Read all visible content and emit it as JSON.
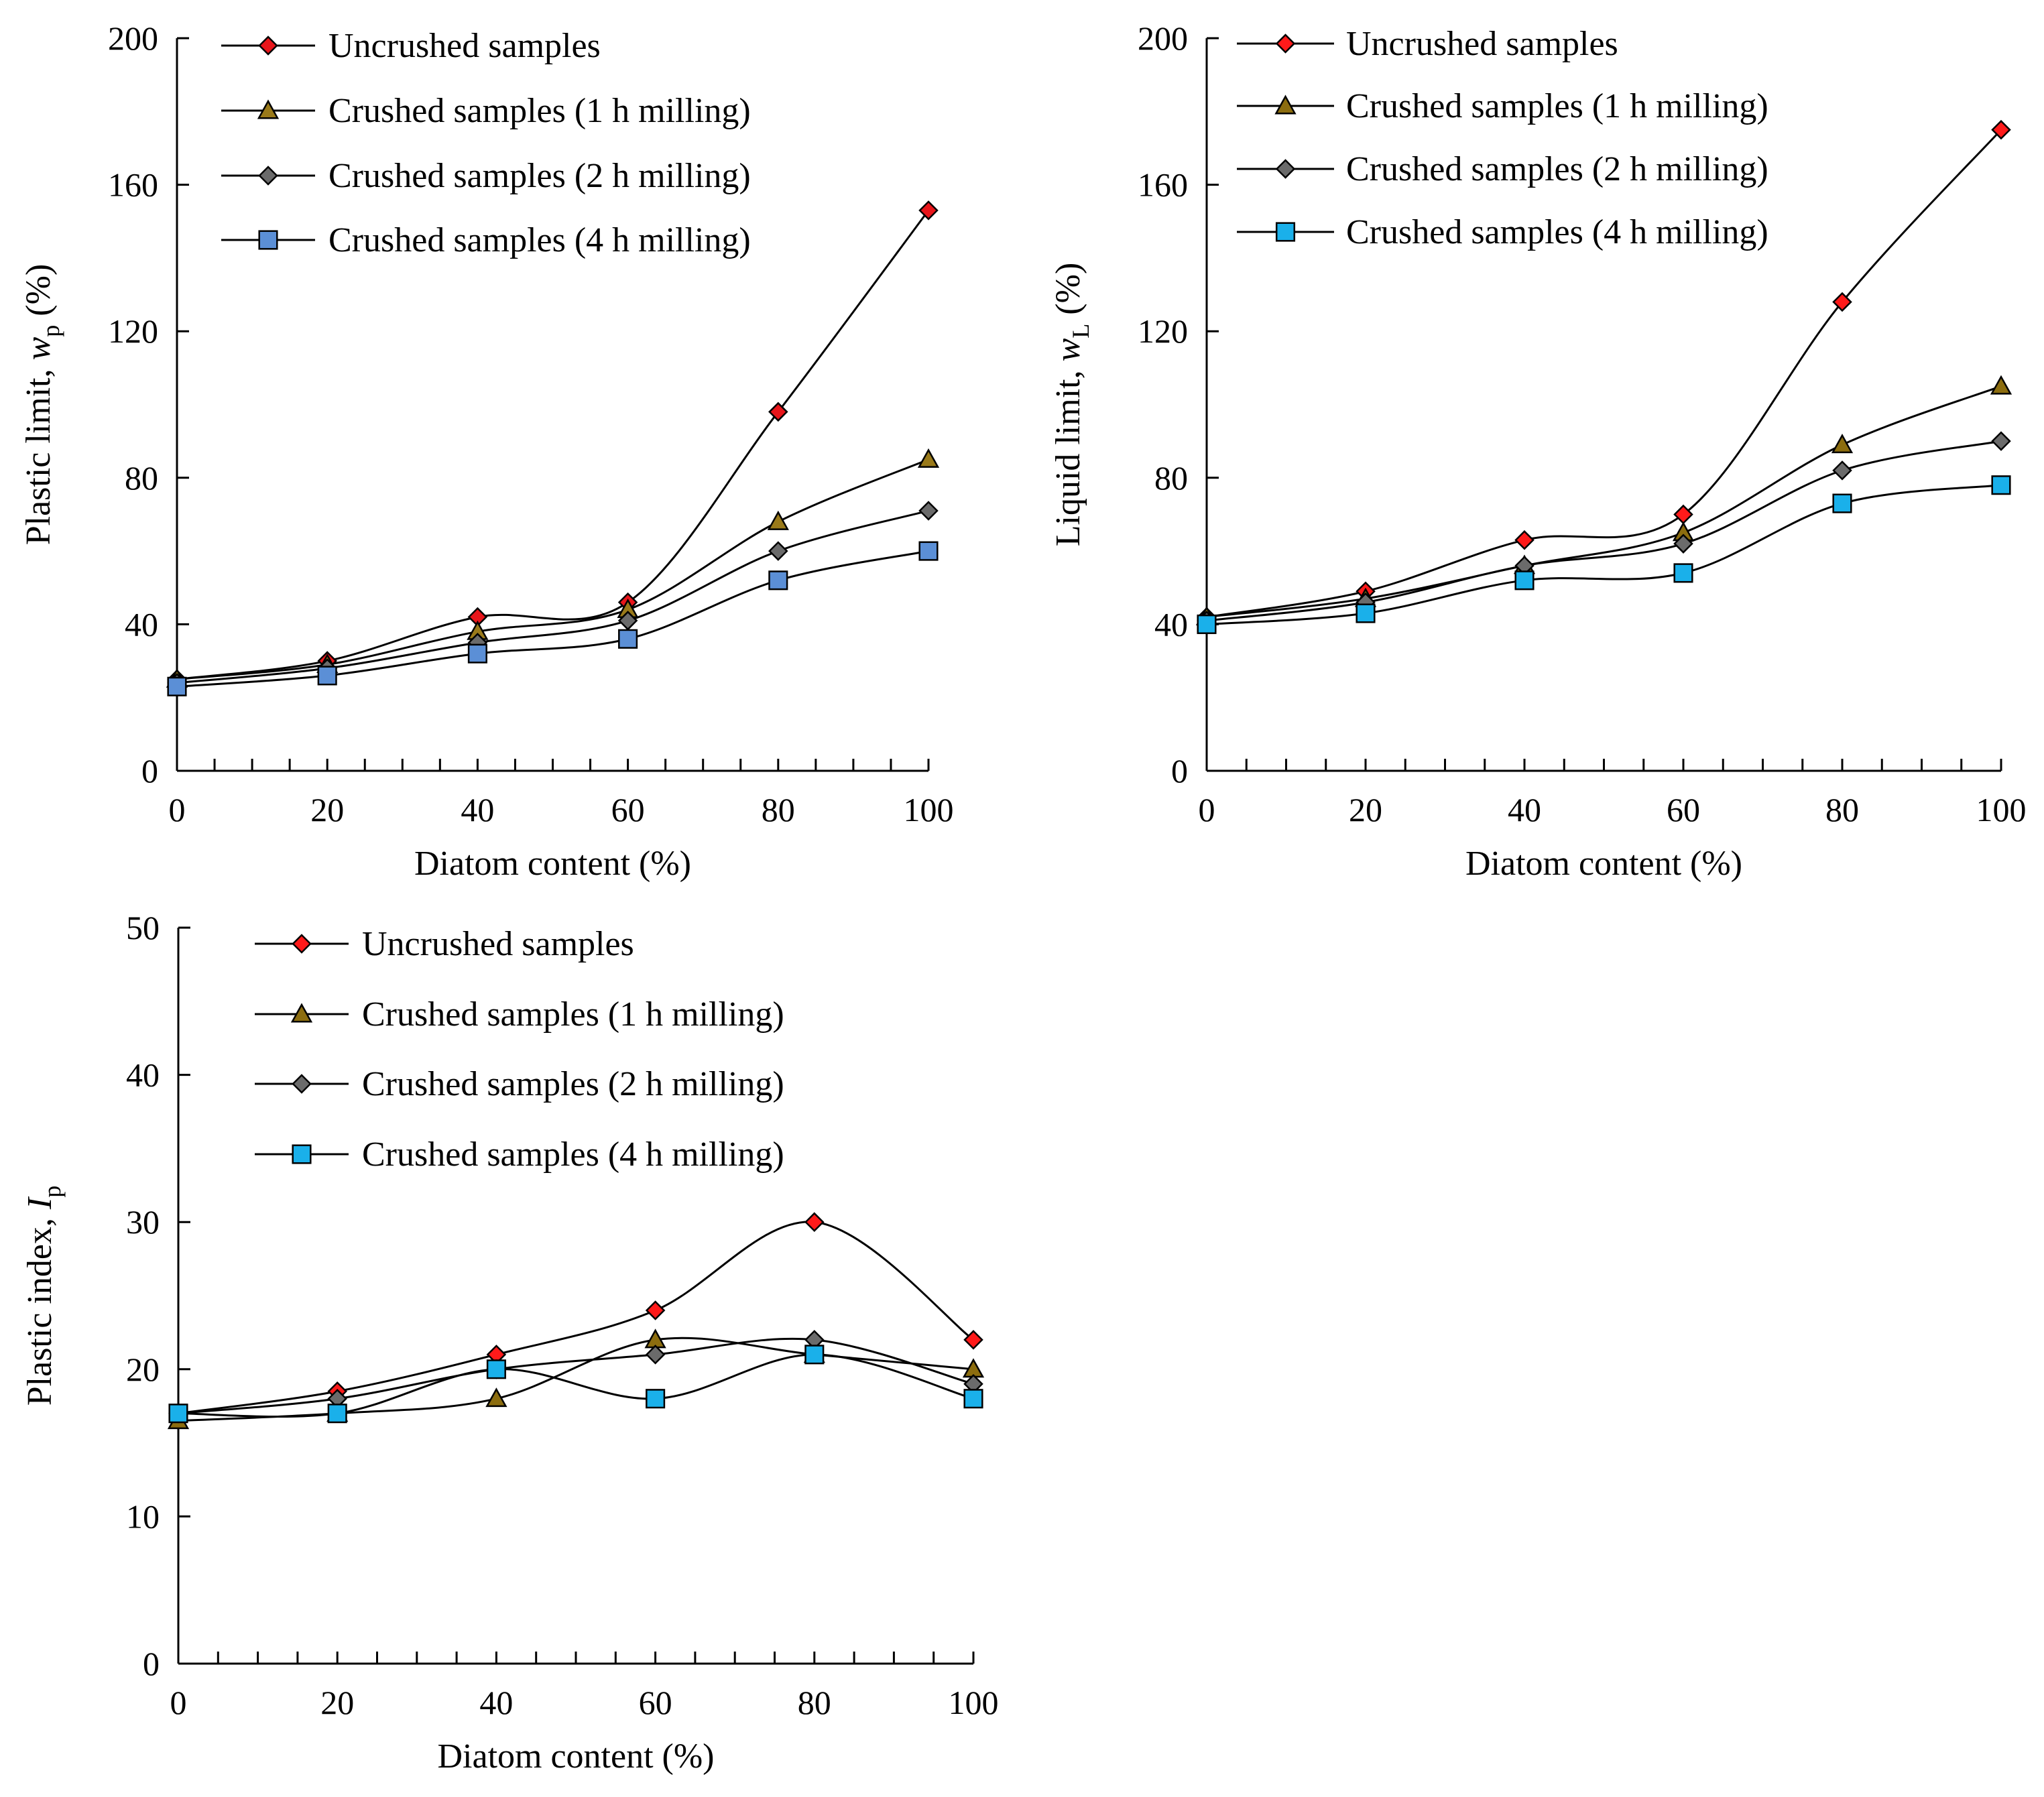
{
  "chart_data": [
    {
      "type": "line",
      "id": "plastic-limit",
      "ylabel_text": "Plastic limit, ",
      "ylabel_symbol": "w",
      "ylabel_sub": "p",
      "ylabel_unit": " (%)",
      "xlabel": "Diatom content (%)",
      "xlim": [
        0,
        100
      ],
      "ylim": [
        0,
        200
      ],
      "xticks": [
        0,
        20,
        40,
        60,
        80,
        100
      ],
      "yticks": [
        0,
        40,
        80,
        120,
        160,
        200
      ],
      "grid": false,
      "legend_position": "top-left",
      "x": [
        0,
        20,
        40,
        60,
        80,
        100
      ],
      "series": [
        {
          "name": "Uncrushed samples",
          "marker": "diamond",
          "color": "#e8161b",
          "values": [
            25,
            30,
            42,
            46,
            98,
            153
          ]
        },
        {
          "name": "Crushed samples (1 h milling)",
          "marker": "triangle",
          "color": "#9a7a1a",
          "values": [
            25,
            29,
            38,
            44,
            68,
            85
          ]
        },
        {
          "name": "Crushed samples (2 h milling)",
          "marker": "diamond",
          "color": "#6b6b6b",
          "values": [
            24,
            28,
            35,
            41,
            60,
            71
          ]
        },
        {
          "name": "Crushed samples (4 h milling)",
          "marker": "square",
          "color": "#5b8fd6",
          "values": [
            23,
            26,
            32,
            36,
            52,
            60
          ]
        }
      ]
    },
    {
      "type": "line",
      "id": "liquid-limit",
      "ylabel_text": "Liquid limit, ",
      "ylabel_symbol": "w",
      "ylabel_sub": "L",
      "ylabel_unit": " (%)",
      "xlabel": "Diatom content (%)",
      "xlim": [
        0,
        100
      ],
      "ylim": [
        0,
        200
      ],
      "xticks": [
        0,
        20,
        40,
        60,
        80,
        100
      ],
      "yticks": [
        0,
        40,
        80,
        120,
        160,
        200
      ],
      "grid": false,
      "legend_position": "top-left",
      "x": [
        0,
        20,
        40,
        60,
        80,
        100
      ],
      "series": [
        {
          "name": "Uncrushed samples",
          "marker": "diamond",
          "color": "#ff1a1a",
          "values": [
            42,
            49,
            63,
            70,
            128,
            175
          ]
        },
        {
          "name": "Crushed samples (1 h milling)",
          "marker": "triangle",
          "color": "#8c6d0f",
          "values": [
            42,
            47,
            56,
            65,
            89,
            105
          ]
        },
        {
          "name": "Crushed samples (2 h milling)",
          "marker": "diamond",
          "color": "#6b6b6b",
          "values": [
            41,
            46,
            56,
            62,
            82,
            90
          ]
        },
        {
          "name": "Crushed samples (4 h milling)",
          "marker": "square",
          "color": "#1ab0ea",
          "values": [
            40,
            43,
            52,
            54,
            73,
            78
          ]
        }
      ]
    },
    {
      "type": "line",
      "id": "plastic-index",
      "ylabel_text": "Plastic index, ",
      "ylabel_symbol": "I",
      "ylabel_sub": "p",
      "ylabel_unit": "",
      "xlabel": "Diatom content (%)",
      "xlim": [
        0,
        100
      ],
      "ylim": [
        0,
        50
      ],
      "xticks": [
        0,
        20,
        40,
        60,
        80,
        100
      ],
      "yticks": [
        0,
        10,
        20,
        30,
        40,
        50
      ],
      "grid": false,
      "legend_position": "top-left",
      "x": [
        0,
        20,
        40,
        60,
        80,
        100
      ],
      "series": [
        {
          "name": "Uncrushed samples",
          "marker": "diamond",
          "color": "#ff1a1a",
          "values": [
            17,
            18.5,
            21,
            24,
            30,
            22
          ]
        },
        {
          "name": "Crushed samples (1 h milling)",
          "marker": "triangle",
          "color": "#8c6d0f",
          "values": [
            16.5,
            17,
            18,
            22,
            21,
            20
          ]
        },
        {
          "name": "Crushed samples (2 h milling)",
          "marker": "diamond",
          "color": "#6b6b6b",
          "values": [
            17,
            18,
            20,
            21,
            22,
            19
          ]
        },
        {
          "name": "Crushed samples (4 h milling)",
          "marker": "square",
          "color": "#1ab0ea",
          "values": [
            17,
            17,
            20,
            18,
            21,
            18
          ]
        }
      ]
    }
  ]
}
